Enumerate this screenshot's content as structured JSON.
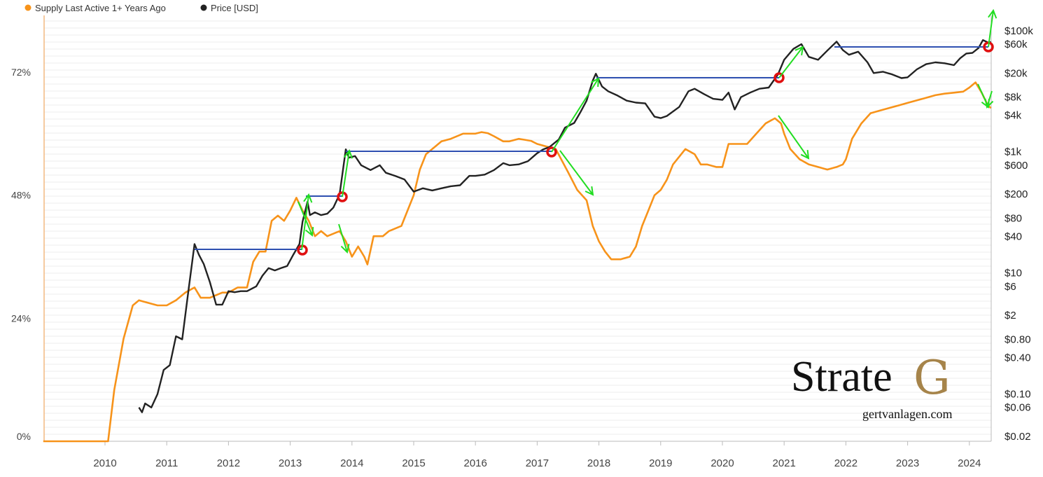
{
  "chart_data": {
    "type": "line",
    "title": "",
    "legend": {
      "placement": "top-left",
      "items": [
        {
          "label": "Supply Last Active 1+ Years Ago",
          "color": "#f7931a"
        },
        {
          "label": "Price [USD]",
          "color": "#222222"
        }
      ]
    },
    "x_axis": {
      "label": "",
      "range": [
        2009.0,
        2024.45
      ],
      "ticks": [
        "2010",
        "2011",
        "2012",
        "2013",
        "2014",
        "2015",
        "2016",
        "2017",
        "2018",
        "2019",
        "2020",
        "2021",
        "2022",
        "2023",
        "2024"
      ]
    },
    "y_left": {
      "label": "",
      "unit": "%",
      "range": [
        0,
        82
      ],
      "ticks": [
        "0%",
        "24%",
        "48%",
        "72%"
      ],
      "tick_values": [
        0,
        24,
        48,
        72
      ]
    },
    "y_right": {
      "label": "",
      "scale": "log",
      "ticks": [
        "$0.02",
        "$0.06",
        "$0.10",
        "$0.40",
        "$0.80",
        "$2",
        "$6",
        "$10",
        "$40",
        "$80",
        "$200",
        "$600",
        "$1k",
        "$4k",
        "$8k",
        "$20k",
        "$60k",
        "$100k"
      ],
      "tick_values": [
        0.02,
        0.06,
        0.1,
        0.4,
        0.8,
        2,
        6,
        10,
        40,
        80,
        200,
        600,
        1000,
        4000,
        8000,
        20000,
        60000,
        100000
      ]
    },
    "grid": "horizontal",
    "series": [
      {
        "name": "Supply Last Active 1+ Years Ago",
        "axis": "left",
        "color": "#f7931a",
        "points": [
          [
            2009.0,
            0
          ],
          [
            2010.05,
            0
          ],
          [
            2010.15,
            10
          ],
          [
            2010.3,
            20
          ],
          [
            2010.45,
            26.5
          ],
          [
            2010.55,
            27.5
          ],
          [
            2010.7,
            27
          ],
          [
            2010.85,
            26.5
          ],
          [
            2011.0,
            26.5
          ],
          [
            2011.15,
            27.5
          ],
          [
            2011.3,
            29
          ],
          [
            2011.45,
            30
          ],
          [
            2011.55,
            28
          ],
          [
            2011.7,
            28
          ],
          [
            2011.9,
            29
          ],
          [
            2012.0,
            29
          ],
          [
            2012.15,
            30
          ],
          [
            2012.3,
            30
          ],
          [
            2012.4,
            35
          ],
          [
            2012.5,
            37
          ],
          [
            2012.6,
            37
          ],
          [
            2012.7,
            43
          ],
          [
            2012.8,
            44
          ],
          [
            2012.9,
            43
          ],
          [
            2013.0,
            45
          ],
          [
            2013.1,
            47.5
          ],
          [
            2013.2,
            45
          ],
          [
            2013.3,
            43
          ],
          [
            2013.4,
            40
          ],
          [
            2013.5,
            41
          ],
          [
            2013.6,
            40
          ],
          [
            2013.8,
            41
          ],
          [
            2013.9,
            39
          ],
          [
            2014.0,
            36
          ],
          [
            2014.1,
            38
          ],
          [
            2014.2,
            36
          ],
          [
            2014.25,
            34.5
          ],
          [
            2014.35,
            40
          ],
          [
            2014.5,
            40
          ],
          [
            2014.6,
            41
          ],
          [
            2014.8,
            42
          ],
          [
            2014.9,
            45
          ],
          [
            2015.0,
            48
          ],
          [
            2015.1,
            53
          ],
          [
            2015.2,
            56
          ],
          [
            2015.3,
            57
          ],
          [
            2015.45,
            58.5
          ],
          [
            2015.6,
            59
          ],
          [
            2015.8,
            60
          ],
          [
            2015.9,
            60
          ],
          [
            2016.0,
            60
          ],
          [
            2016.1,
            60.3
          ],
          [
            2016.2,
            60.1
          ],
          [
            2016.3,
            59.5
          ],
          [
            2016.45,
            58.5
          ],
          [
            2016.55,
            58.5
          ],
          [
            2016.7,
            59
          ],
          [
            2016.8,
            58.8
          ],
          [
            2016.9,
            58.6
          ],
          [
            2017.0,
            58
          ],
          [
            2017.15,
            57.5
          ],
          [
            2017.3,
            57
          ],
          [
            2017.5,
            52.5
          ],
          [
            2017.65,
            49
          ],
          [
            2017.8,
            47
          ],
          [
            2017.9,
            42
          ],
          [
            2018.0,
            39
          ],
          [
            2018.1,
            37
          ],
          [
            2018.2,
            35.5
          ],
          [
            2018.35,
            35.5
          ],
          [
            2018.5,
            36
          ],
          [
            2018.6,
            38
          ],
          [
            2018.7,
            42
          ],
          [
            2018.8,
            45
          ],
          [
            2018.9,
            48
          ],
          [
            2019.0,
            49
          ],
          [
            2019.1,
            51
          ],
          [
            2019.2,
            54
          ],
          [
            2019.4,
            57
          ],
          [
            2019.55,
            56
          ],
          [
            2019.65,
            54
          ],
          [
            2019.75,
            54
          ],
          [
            2019.9,
            53.5
          ],
          [
            2020.0,
            53.5
          ],
          [
            2020.1,
            58
          ],
          [
            2020.25,
            58
          ],
          [
            2020.4,
            58
          ],
          [
            2020.55,
            60
          ],
          [
            2020.7,
            62
          ],
          [
            2020.85,
            63
          ],
          [
            2020.95,
            62
          ],
          [
            2021.0,
            60
          ],
          [
            2021.1,
            57
          ],
          [
            2021.25,
            55
          ],
          [
            2021.4,
            54
          ],
          [
            2021.55,
            53.5
          ],
          [
            2021.7,
            53
          ],
          [
            2021.85,
            53.5
          ],
          [
            2021.95,
            54
          ],
          [
            2022.0,
            55
          ],
          [
            2022.1,
            59
          ],
          [
            2022.25,
            62
          ],
          [
            2022.4,
            64
          ],
          [
            2022.55,
            64.5
          ],
          [
            2022.7,
            65
          ],
          [
            2022.85,
            65.5
          ],
          [
            2023.0,
            66
          ],
          [
            2023.15,
            66.5
          ],
          [
            2023.3,
            67
          ],
          [
            2023.45,
            67.5
          ],
          [
            2023.6,
            67.8
          ],
          [
            2023.75,
            68
          ],
          [
            2023.9,
            68.2
          ],
          [
            2024.0,
            69
          ],
          [
            2024.1,
            70
          ],
          [
            2024.2,
            68
          ],
          [
            2024.3,
            65.5
          ],
          [
            2024.35,
            65
          ]
        ]
      },
      {
        "name": "Price [USD]",
        "axis": "right",
        "color": "#222222",
        "points": [
          [
            2010.55,
            0.06
          ],
          [
            2010.6,
            0.05
          ],
          [
            2010.65,
            0.07
          ],
          [
            2010.75,
            0.06
          ],
          [
            2010.85,
            0.1
          ],
          [
            2010.95,
            0.25
          ],
          [
            2011.05,
            0.3
          ],
          [
            2011.15,
            0.9
          ],
          [
            2011.25,
            0.8
          ],
          [
            2011.35,
            5
          ],
          [
            2011.45,
            30
          ],
          [
            2011.52,
            20
          ],
          [
            2011.6,
            14
          ],
          [
            2011.7,
            7
          ],
          [
            2011.8,
            3
          ],
          [
            2011.9,
            3
          ],
          [
            2012.0,
            5
          ],
          [
            2012.1,
            4.8
          ],
          [
            2012.2,
            5
          ],
          [
            2012.3,
            5
          ],
          [
            2012.45,
            6
          ],
          [
            2012.55,
            9
          ],
          [
            2012.65,
            12
          ],
          [
            2012.75,
            11
          ],
          [
            2012.85,
            12
          ],
          [
            2012.95,
            13
          ],
          [
            2013.05,
            20
          ],
          [
            2013.15,
            30
          ],
          [
            2013.2,
            70
          ],
          [
            2013.28,
            150
          ],
          [
            2013.32,
            90
          ],
          [
            2013.4,
            100
          ],
          [
            2013.5,
            90
          ],
          [
            2013.6,
            95
          ],
          [
            2013.7,
            120
          ],
          [
            2013.8,
            200
          ],
          [
            2013.9,
            1100
          ],
          [
            2013.95,
            800
          ],
          [
            2014.05,
            850
          ],
          [
            2014.15,
            600
          ],
          [
            2014.3,
            500
          ],
          [
            2014.45,
            600
          ],
          [
            2014.55,
            450
          ],
          [
            2014.7,
            400
          ],
          [
            2014.85,
            350
          ],
          [
            2015.0,
            220
          ],
          [
            2015.15,
            250
          ],
          [
            2015.3,
            230
          ],
          [
            2015.45,
            250
          ],
          [
            2015.6,
            270
          ],
          [
            2015.75,
            280
          ],
          [
            2015.9,
            400
          ],
          [
            2016.0,
            400
          ],
          [
            2016.15,
            420
          ],
          [
            2016.3,
            500
          ],
          [
            2016.45,
            650
          ],
          [
            2016.55,
            600
          ],
          [
            2016.7,
            620
          ],
          [
            2016.85,
            700
          ],
          [
            2017.0,
            950
          ],
          [
            2017.1,
            1100
          ],
          [
            2017.2,
            1200
          ],
          [
            2017.35,
            1600
          ],
          [
            2017.45,
            2500
          ],
          [
            2017.6,
            3000
          ],
          [
            2017.7,
            4500
          ],
          [
            2017.8,
            7000
          ],
          [
            2017.9,
            15000
          ],
          [
            2017.95,
            19500
          ],
          [
            2018.05,
            12000
          ],
          [
            2018.15,
            10000
          ],
          [
            2018.3,
            8500
          ],
          [
            2018.45,
            7000
          ],
          [
            2018.6,
            6500
          ],
          [
            2018.75,
            6300
          ],
          [
            2018.9,
            3800
          ],
          [
            2019.0,
            3600
          ],
          [
            2019.1,
            3900
          ],
          [
            2019.3,
            5500
          ],
          [
            2019.45,
            10000
          ],
          [
            2019.55,
            11000
          ],
          [
            2019.7,
            9000
          ],
          [
            2019.85,
            7500
          ],
          [
            2020.0,
            7200
          ],
          [
            2020.1,
            9500
          ],
          [
            2020.2,
            5000
          ],
          [
            2020.3,
            8000
          ],
          [
            2020.45,
            9500
          ],
          [
            2020.6,
            11000
          ],
          [
            2020.75,
            11500
          ],
          [
            2020.9,
            19000
          ],
          [
            2021.0,
            33000
          ],
          [
            2021.15,
            50000
          ],
          [
            2021.28,
            60000
          ],
          [
            2021.4,
            37000
          ],
          [
            2021.55,
            33000
          ],
          [
            2021.7,
            47000
          ],
          [
            2021.85,
            66000
          ],
          [
            2021.95,
            48000
          ],
          [
            2022.05,
            40000
          ],
          [
            2022.2,
            45000
          ],
          [
            2022.35,
            30000
          ],
          [
            2022.45,
            20000
          ],
          [
            2022.6,
            21000
          ],
          [
            2022.75,
            19000
          ],
          [
            2022.9,
            16500
          ],
          [
            2023.0,
            17000
          ],
          [
            2023.15,
            23000
          ],
          [
            2023.3,
            28000
          ],
          [
            2023.45,
            30000
          ],
          [
            2023.6,
            29000
          ],
          [
            2023.75,
            27000
          ],
          [
            2023.85,
            35000
          ],
          [
            2023.95,
            42000
          ],
          [
            2024.05,
            43000
          ],
          [
            2024.15,
            52000
          ],
          [
            2024.22,
            70000
          ],
          [
            2024.3,
            64000
          ],
          [
            2024.35,
            65000
          ]
        ]
      }
    ]
  },
  "watermark": {
    "brand": "Strate",
    "brand_g": "G",
    "url": "gertvanlagen.com"
  }
}
